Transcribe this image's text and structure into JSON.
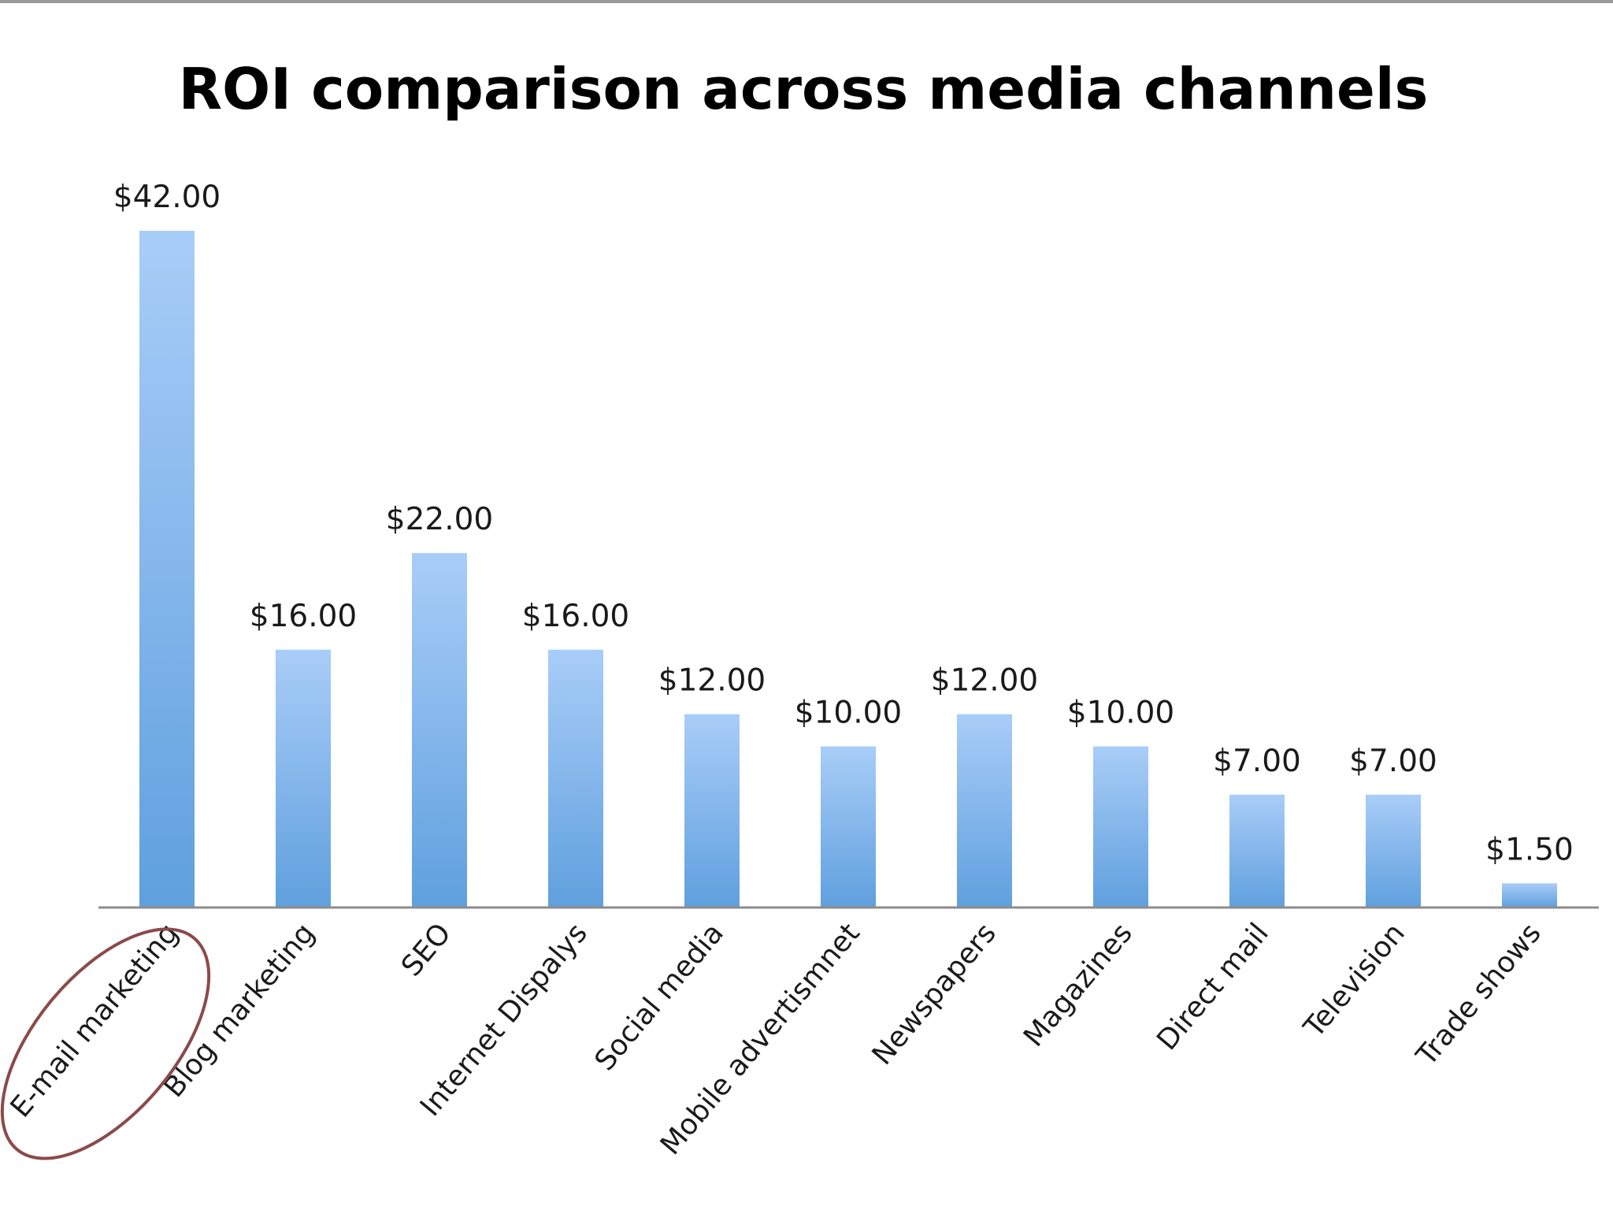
{
  "chart_data": {
    "type": "bar",
    "title": "ROI comparison across media channels",
    "xlabel": "",
    "ylabel": "",
    "ylim": [
      0,
      42
    ],
    "grid": false,
    "legend": "none",
    "categories": [
      "E-mail marketing",
      "Blog marketing",
      "SEO",
      "Internet Dispalys",
      "Social media",
      "Mobile advertismnet",
      "Newspapers",
      "Magazines",
      "Direct mail",
      "Television",
      "Trade shows"
    ],
    "values": [
      42,
      16,
      22,
      16,
      12,
      10,
      12,
      10,
      7,
      7,
      1.5
    ],
    "data_labels": [
      "$42.00",
      "$16.00",
      "$22.00",
      "$16.00",
      "$12.00",
      "$10.00",
      "$12.00",
      "$10.00",
      "$7.00",
      "$7.00",
      "$1.50"
    ],
    "highlighted_category": "E-mail marketing"
  },
  "colors": {
    "bar_top": "#a9cdf8",
    "bar_bottom": "#5fa0de",
    "axis": "#8c8c8c",
    "highlight_ring": "#8b4a4a"
  }
}
